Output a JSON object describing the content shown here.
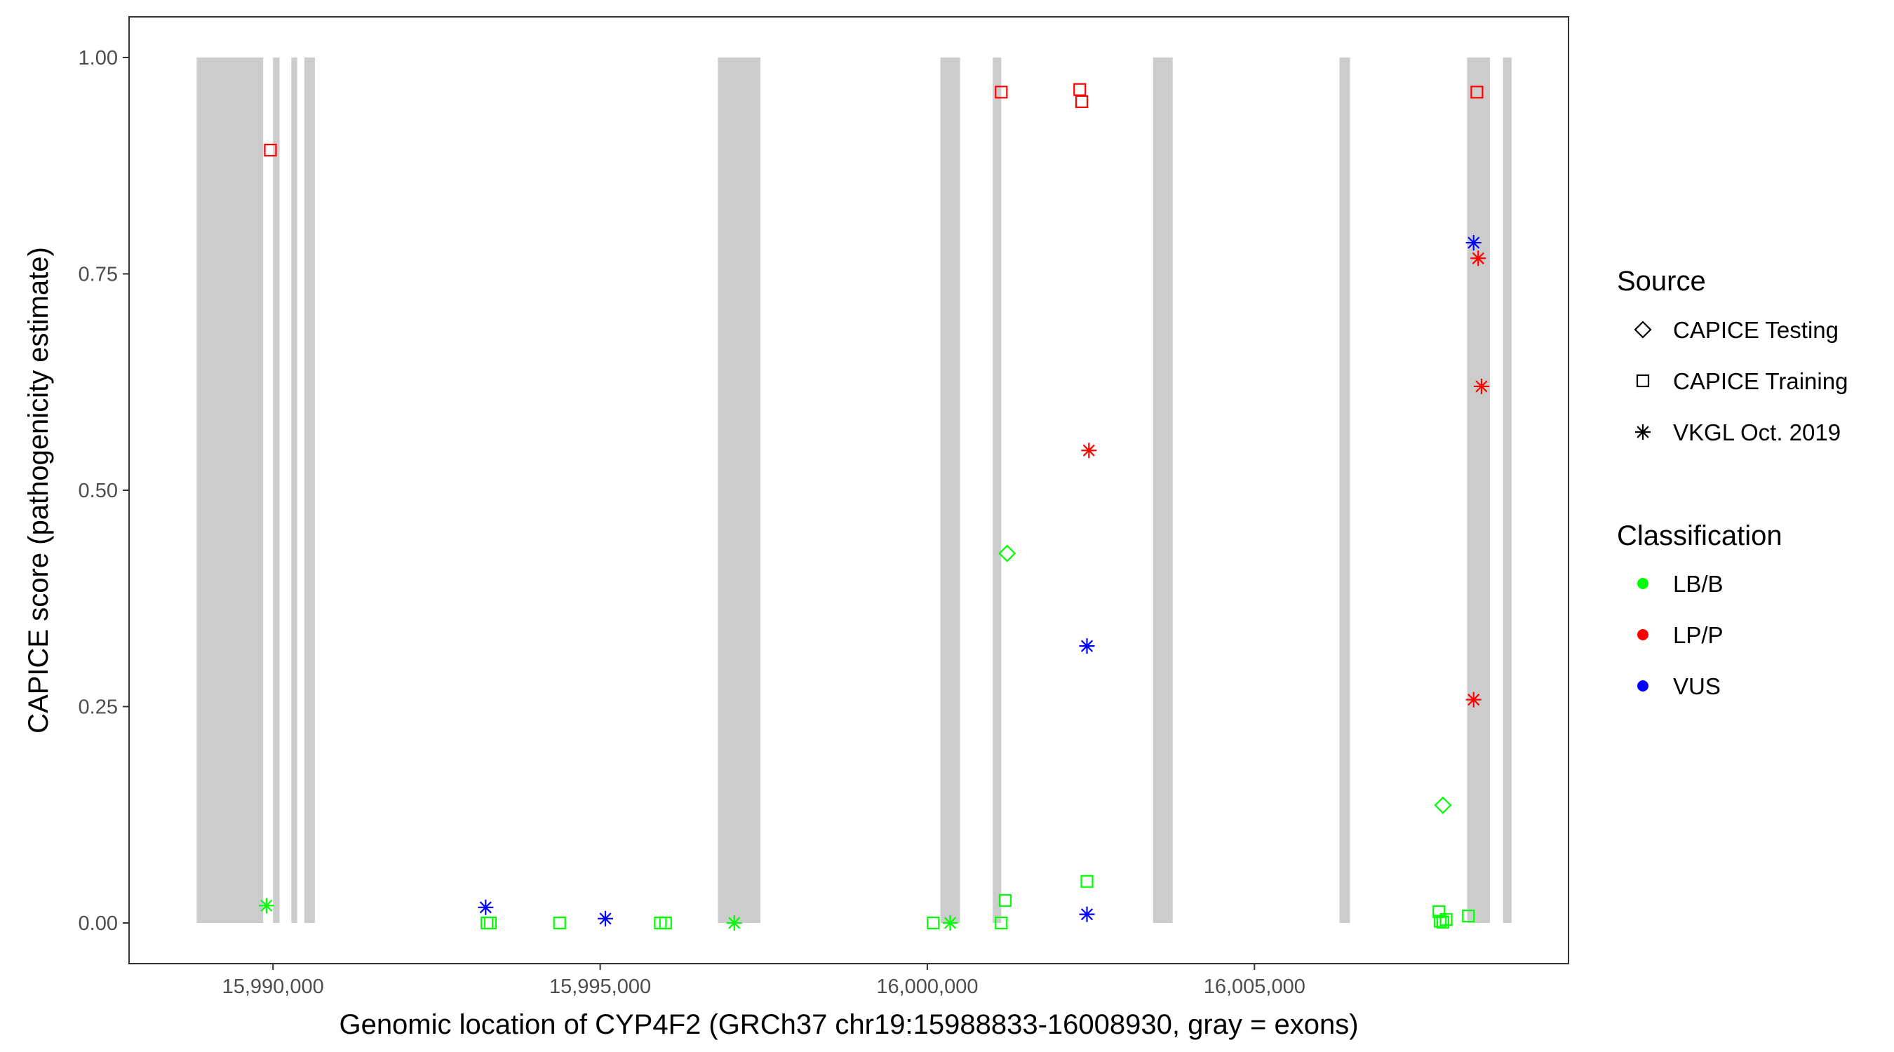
{
  "chart_data": {
    "type": "scatter",
    "xlabel": "Genomic location of CYP4F2 (GRCh37 chr19:15988833-16008930, gray = exons)",
    "ylabel": "CAPICE score (pathogenicity estimate)",
    "xlim": [
      15987800,
      16009800
    ],
    "ylim": [
      -0.047,
      1.047
    ],
    "x_ticks": [
      15990000,
      15995000,
      16000000,
      16005000
    ],
    "x_tick_labels": [
      "15,990,000",
      "15,995,000",
      "16,000,000",
      "16,005,000"
    ],
    "y_ticks": [
      0,
      0.25,
      0.5,
      0.75,
      1.0
    ],
    "y_tick_labels": [
      "0.00",
      "0.25",
      "0.50",
      "0.75",
      "1.00"
    ],
    "grid": false,
    "exons": [
      [
        15988833,
        15989850
      ],
      [
        15990000,
        15990100
      ],
      [
        15990280,
        15990370
      ],
      [
        15990480,
        15990640
      ],
      [
        15996800,
        15997450
      ],
      [
        16000200,
        16000500
      ],
      [
        16001000,
        16001130
      ],
      [
        16003450,
        16003750
      ],
      [
        16006300,
        16006460
      ],
      [
        16008250,
        16008600
      ],
      [
        16008800,
        16008930
      ]
    ],
    "exon_color": "#cccccc",
    "legends": [
      {
        "title": "Source",
        "entries": [
          {
            "label": "CAPICE Testing",
            "shape": "diamond"
          },
          {
            "label": "CAPICE Training",
            "shape": "square"
          },
          {
            "label": "VKGL Oct. 2019",
            "shape": "asterisk"
          }
        ]
      },
      {
        "title": "Classification",
        "entries": [
          {
            "label": "LB/B",
            "color": "#00ff00"
          },
          {
            "label": "LP/P",
            "color": "#ff0000"
          },
          {
            "label": "VUS",
            "color": "#0000ff"
          }
        ]
      }
    ],
    "colors": {
      "LB/B": "#00ff00",
      "LP/P": "#ff0000",
      "VUS": "#0000ff"
    },
    "points": [
      {
        "x": 15989960,
        "y": 0.893,
        "source": "CAPICE Training",
        "class": "LP/P"
      },
      {
        "x": 16001130,
        "y": 0.96,
        "source": "CAPICE Training",
        "class": "LP/P"
      },
      {
        "x": 16002330,
        "y": 0.963,
        "source": "CAPICE Training",
        "class": "LP/P"
      },
      {
        "x": 16002360,
        "y": 0.949,
        "source": "CAPICE Training",
        "class": "LP/P"
      },
      {
        "x": 16008400,
        "y": 0.96,
        "source": "CAPICE Training",
        "class": "LP/P"
      },
      {
        "x": 16002470,
        "y": 0.546,
        "source": "VKGL Oct. 2019",
        "class": "LP/P"
      },
      {
        "x": 16008420,
        "y": 0.768,
        "source": "VKGL Oct. 2019",
        "class": "LP/P"
      },
      {
        "x": 16008470,
        "y": 0.62,
        "source": "VKGL Oct. 2019",
        "class": "LP/P"
      },
      {
        "x": 16008350,
        "y": 0.258,
        "source": "VKGL Oct. 2019",
        "class": "LP/P"
      },
      {
        "x": 16008350,
        "y": 0.786,
        "source": "VKGL Oct. 2019",
        "class": "VUS"
      },
      {
        "x": 16002440,
        "y": 0.32,
        "source": "VKGL Oct. 2019",
        "class": "VUS"
      },
      {
        "x": 16002440,
        "y": 0.01,
        "source": "VKGL Oct. 2019",
        "class": "VUS"
      },
      {
        "x": 15993250,
        "y": 0.018,
        "source": "VKGL Oct. 2019",
        "class": "VUS"
      },
      {
        "x": 15995080,
        "y": 0.005,
        "source": "VKGL Oct. 2019",
        "class": "VUS"
      },
      {
        "x": 16001220,
        "y": 0.427,
        "source": "CAPICE Testing",
        "class": "LB/B"
      },
      {
        "x": 16007880,
        "y": 0.136,
        "source": "CAPICE Testing",
        "class": "LB/B"
      },
      {
        "x": 15989900,
        "y": 0.02,
        "source": "VKGL Oct. 2019",
        "class": "LB/B"
      },
      {
        "x": 16000350,
        "y": 0.0,
        "source": "VKGL Oct. 2019",
        "class": "LB/B"
      },
      {
        "x": 15997050,
        "y": 0.0,
        "source": "VKGL Oct. 2019",
        "class": "LB/B"
      },
      {
        "x": 15993270,
        "y": 0.0,
        "source": "CAPICE Training",
        "class": "LB/B"
      },
      {
        "x": 15993320,
        "y": 0.0,
        "source": "CAPICE Training",
        "class": "LB/B"
      },
      {
        "x": 15994380,
        "y": 0.0,
        "source": "CAPICE Training",
        "class": "LB/B"
      },
      {
        "x": 15995920,
        "y": 0.0,
        "source": "CAPICE Training",
        "class": "LB/B"
      },
      {
        "x": 15996000,
        "y": 0.0,
        "source": "CAPICE Training",
        "class": "LB/B"
      },
      {
        "x": 16000090,
        "y": 0.0,
        "source": "CAPICE Training",
        "class": "LB/B"
      },
      {
        "x": 16001130,
        "y": 0.0,
        "source": "CAPICE Training",
        "class": "LB/B"
      },
      {
        "x": 16001190,
        "y": 0.026,
        "source": "CAPICE Training",
        "class": "LB/B"
      },
      {
        "x": 16002440,
        "y": 0.048,
        "source": "CAPICE Training",
        "class": "LB/B"
      },
      {
        "x": 16007820,
        "y": 0.013,
        "source": "CAPICE Training",
        "class": "LB/B"
      },
      {
        "x": 16007840,
        "y": 0.002,
        "source": "CAPICE Training",
        "class": "LB/B"
      },
      {
        "x": 16007880,
        "y": 0.001,
        "source": "CAPICE Training",
        "class": "LB/B"
      },
      {
        "x": 16007930,
        "y": 0.004,
        "source": "CAPICE Training",
        "class": "LB/B"
      },
      {
        "x": 16008270,
        "y": 0.008,
        "source": "CAPICE Training",
        "class": "LB/B"
      }
    ]
  }
}
